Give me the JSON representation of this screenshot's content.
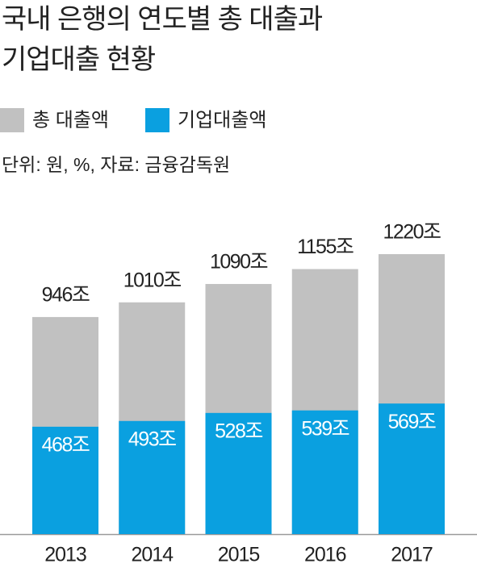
{
  "chart_data": {
    "type": "bar",
    "title": [
      "국내 은행의 연도별 총 대출과",
      "기업대출 현황"
    ],
    "note": "단위: 원, %, 자료: 금융감독원",
    "categories": [
      "2013",
      "2014",
      "2015",
      "2016",
      "2017"
    ],
    "series": [
      {
        "name": "총 대출액",
        "color": "#c1c1c1",
        "values": [
          946,
          1010,
          1090,
          1155,
          1220
        ],
        "value_labels": [
          "946조",
          "1010조",
          "1090조",
          "1155조",
          "1220조"
        ]
      },
      {
        "name": "기업대출액",
        "color": "#0aa0e0",
        "values": [
          468,
          493,
          528,
          539,
          569
        ],
        "value_labels": [
          "468조",
          "493조",
          "528조",
          "539조",
          "569조"
        ]
      }
    ]
  }
}
